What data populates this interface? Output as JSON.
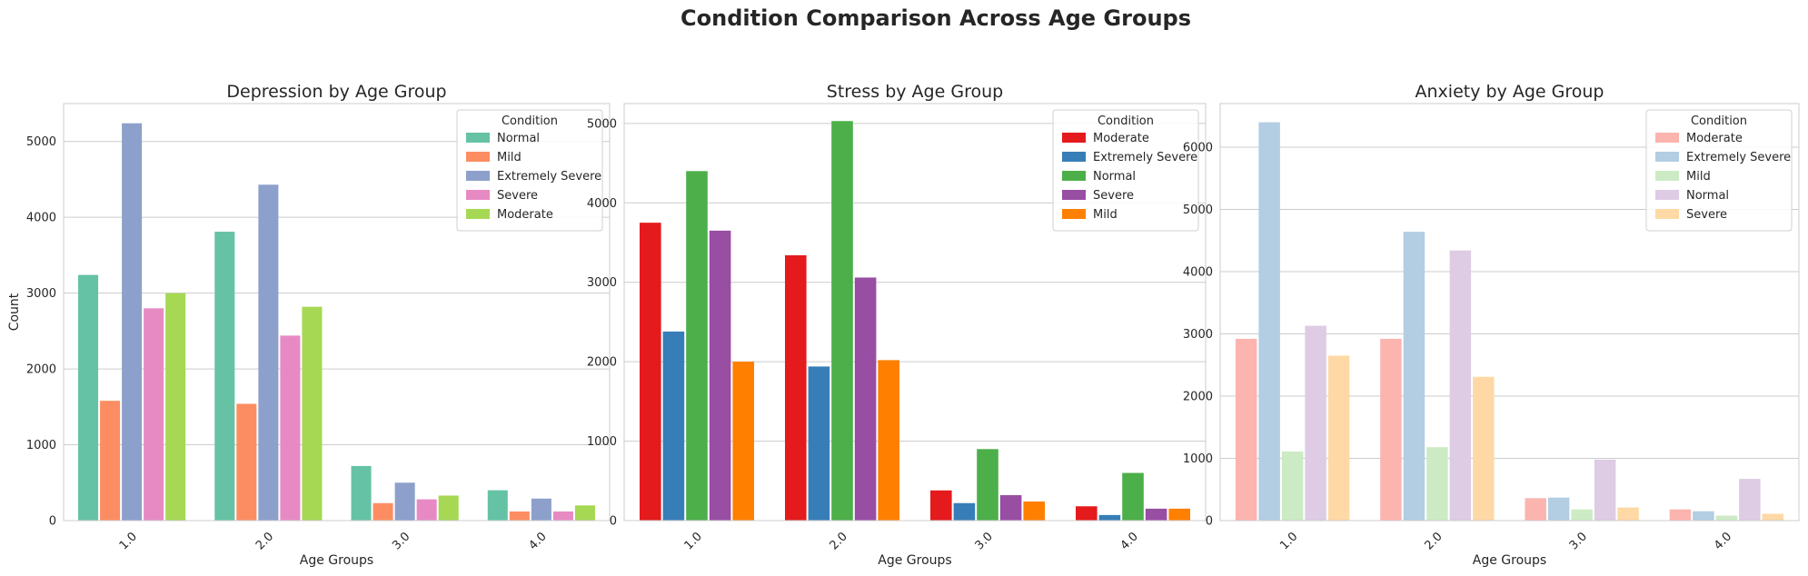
{
  "figure_title": "Condition Comparison Across Age Groups",
  "chart_data": [
    {
      "type": "bar",
      "title": "Depression by Age Group",
      "xlabel": "Age Groups",
      "ylabel": "Count",
      "categories": [
        "1.0",
        "2.0",
        "3.0",
        "4.0"
      ],
      "ylim": [
        0,
        5500
      ],
      "yticks": [
        0,
        1000,
        2000,
        3000,
        4000,
        5000
      ],
      "grid": true,
      "legend": {
        "title": "Condition",
        "placement": "top-right"
      },
      "series": [
        {
          "name": "Normal",
          "color": "#66c2a5",
          "values": [
            3240,
            3810,
            720,
            400
          ]
        },
        {
          "name": "Mild",
          "color": "#fc8d62",
          "values": [
            1580,
            1540,
            230,
            120
          ]
        },
        {
          "name": "Extremely Severe",
          "color": "#8da0cb",
          "values": [
            5240,
            4430,
            500,
            290
          ]
        },
        {
          "name": "Severe",
          "color": "#e78ac3",
          "values": [
            2800,
            2440,
            280,
            120
          ]
        },
        {
          "name": "Moderate",
          "color": "#a6d854",
          "values": [
            3000,
            2820,
            330,
            200
          ]
        }
      ]
    },
    {
      "type": "bar",
      "title": "Stress by Age Group",
      "xlabel": "Age Groups",
      "ylabel": "",
      "categories": [
        "1.0",
        "2.0",
        "3.0",
        "4.0"
      ],
      "ylim": [
        0,
        5250
      ],
      "yticks": [
        0,
        1000,
        2000,
        3000,
        4000,
        5000
      ],
      "grid": true,
      "legend": {
        "title": "Condition",
        "placement": "top-right"
      },
      "series": [
        {
          "name": "Moderate",
          "color": "#e41a1c",
          "values": [
            3750,
            3340,
            380,
            180
          ]
        },
        {
          "name": "Extremely Severe",
          "color": "#377eb8",
          "values": [
            2380,
            1940,
            220,
            70
          ]
        },
        {
          "name": "Normal",
          "color": "#4daf4a",
          "values": [
            4400,
            5030,
            900,
            600
          ]
        },
        {
          "name": "Severe",
          "color": "#984ea3",
          "values": [
            3650,
            3060,
            320,
            150
          ]
        },
        {
          "name": "Mild",
          "color": "#ff7f00",
          "values": [
            2000,
            2020,
            240,
            150
          ]
        }
      ]
    },
    {
      "type": "bar",
      "title": "Anxiety by Age Group",
      "xlabel": "Age Groups",
      "ylabel": "",
      "categories": [
        "1.0",
        "2.0",
        "3.0",
        "4.0"
      ],
      "ylim": [
        0,
        6700
      ],
      "yticks": [
        0,
        1000,
        2000,
        3000,
        4000,
        5000,
        6000
      ],
      "grid": true,
      "legend": {
        "title": "Condition",
        "placement": "top-right"
      },
      "series": [
        {
          "name": "Moderate",
          "color": "#fbb4ae",
          "values": [
            2920,
            2920,
            360,
            180
          ]
        },
        {
          "name": "Extremely Severe",
          "color": "#b3cde3",
          "values": [
            6400,
            4640,
            370,
            150
          ]
        },
        {
          "name": "Mild",
          "color": "#ccebc5",
          "values": [
            1110,
            1180,
            180,
            80
          ]
        },
        {
          "name": "Normal",
          "color": "#decbe4",
          "values": [
            3130,
            4340,
            980,
            670
          ]
        },
        {
          "name": "Severe",
          "color": "#fed9a6",
          "values": [
            2650,
            2310,
            210,
            110
          ]
        }
      ]
    }
  ]
}
